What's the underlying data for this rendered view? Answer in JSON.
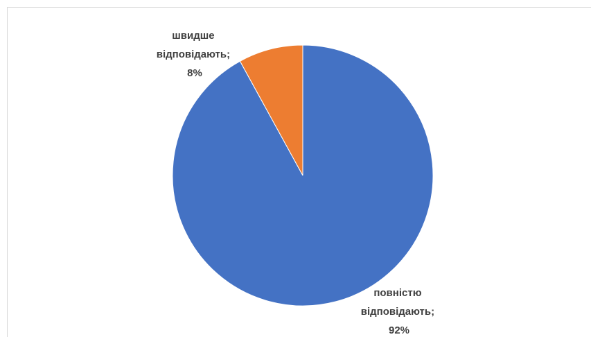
{
  "chart_data": {
    "type": "pie",
    "title": "",
    "slices": [
      {
        "label_lines": [
          "повністю",
          "відповідають;",
          "92%"
        ],
        "value": 92,
        "color": "#4472C4"
      },
      {
        "label_lines": [
          "швидше",
          "відповідають;",
          "8%"
        ],
        "value": 8,
        "color": "#ED7D31"
      }
    ]
  }
}
